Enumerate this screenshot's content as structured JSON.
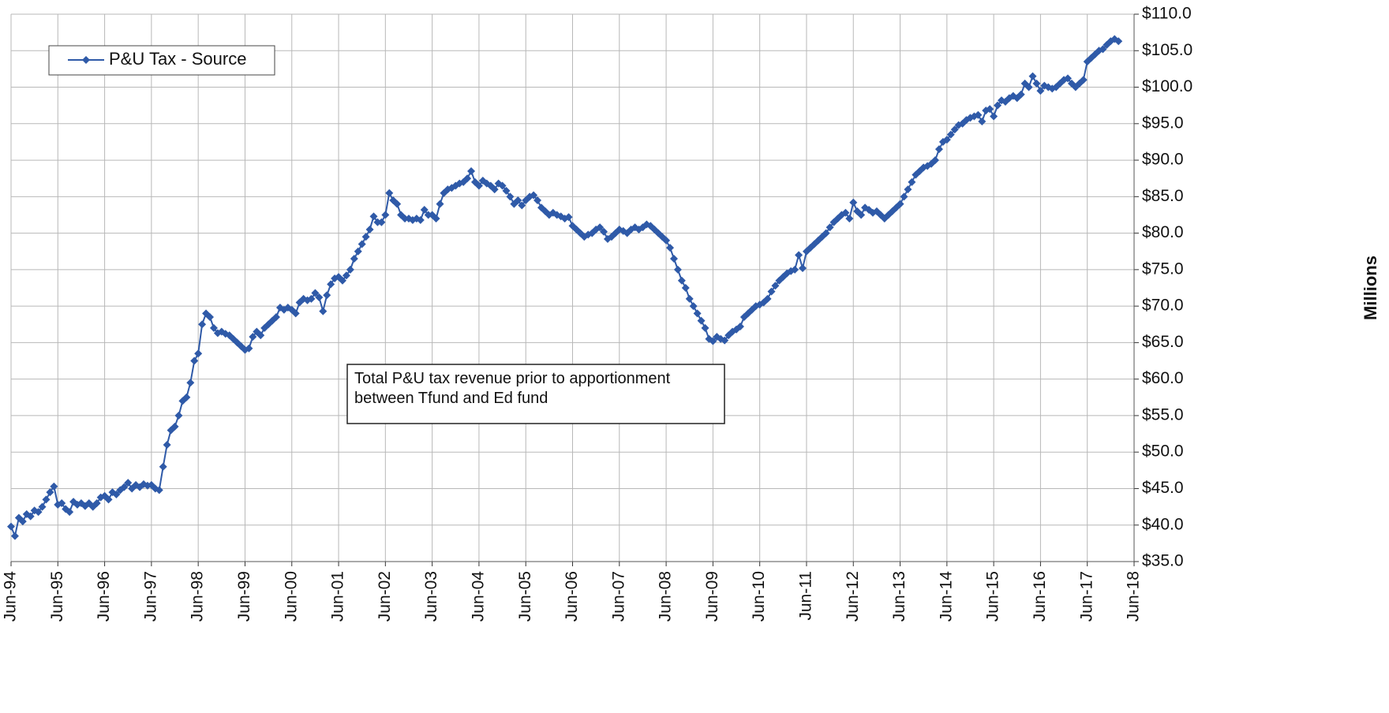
{
  "chart_data": {
    "type": "line",
    "y_label": "Millions",
    "annotation": "Total P&U tax revenue prior to apportionment between Tfund and Ed fund",
    "legend": "upper left",
    "grid": true,
    "categories": [
      "Jun-94",
      null,
      null,
      null,
      null,
      null,
      null,
      null,
      null,
      null,
      null,
      null,
      "Jun-95",
      null,
      null,
      null,
      null,
      null,
      null,
      null,
      null,
      null,
      null,
      null,
      "Jun-96",
      null,
      null,
      null,
      null,
      null,
      null,
      null,
      null,
      null,
      null,
      null,
      "Jun-97",
      null,
      null,
      null,
      null,
      null,
      null,
      null,
      null,
      null,
      null,
      null,
      "Jun-98",
      null,
      null,
      null,
      null,
      null,
      null,
      null,
      null,
      null,
      null,
      null,
      "Jun-99",
      null,
      null,
      null,
      null,
      null,
      null,
      null,
      null,
      null,
      null,
      null,
      "Jun-00",
      null,
      null,
      null,
      null,
      null,
      null,
      null,
      null,
      null,
      null,
      null,
      "Jun-01",
      null,
      null,
      null,
      null,
      null,
      null,
      null,
      null,
      null,
      null,
      null,
      "Jun-02",
      null,
      null,
      null,
      null,
      null,
      null,
      null,
      null,
      null,
      null,
      null,
      "Jun-03",
      null,
      null,
      null,
      null,
      null,
      null,
      null,
      null,
      null,
      null,
      null,
      "Jun-04",
      null,
      null,
      null,
      null,
      null,
      null,
      null,
      null,
      null,
      null,
      null,
      "Jun-05",
      null,
      null,
      null,
      null,
      null,
      null,
      null,
      null,
      null,
      null,
      null,
      "Jun-06",
      null,
      null,
      null,
      null,
      null,
      null,
      null,
      null,
      null,
      null,
      null,
      "Jun-07",
      null,
      null,
      null,
      null,
      null,
      null,
      null,
      null,
      null,
      null,
      null,
      "Jun-08",
      null,
      null,
      null,
      null,
      null,
      null,
      null,
      null,
      null,
      null,
      null,
      "Jun-09",
      null,
      null,
      null,
      null,
      null,
      null,
      null,
      null,
      null,
      null,
      null,
      "Jun-10",
      null,
      null,
      null,
      null,
      null,
      null,
      null,
      null,
      null,
      null,
      null,
      "Jun-11",
      null,
      null,
      null,
      null,
      null,
      null,
      null,
      null,
      null,
      null,
      null,
      "Jun-12",
      null,
      null,
      null,
      null,
      null,
      null,
      null,
      null,
      null,
      null,
      null,
      "Jun-13",
      null,
      null,
      null,
      null,
      null,
      null,
      null,
      null,
      null,
      null,
      null,
      "Jun-14",
      null,
      null,
      null,
      null,
      null,
      null,
      null,
      null,
      null,
      null,
      null,
      "Jun-15",
      null,
      null,
      null,
      null,
      null,
      null,
      null,
      null,
      null,
      null,
      null,
      "Jun-16",
      null,
      null,
      null,
      null,
      null,
      null,
      null,
      null,
      null,
      null,
      null,
      "Jun-17",
      null,
      null,
      null,
      null,
      null,
      null,
      null,
      null,
      null,
      null,
      null,
      "Jun-18"
    ],
    "series": [
      {
        "name": "P&U Tax - Source",
        "color": "#2f5aa8",
        "values": [
          39.8,
          38.5,
          41,
          40.5,
          41.5,
          41.2,
          42,
          41.8,
          42.5,
          43.5,
          44.5,
          45.3,
          42.8,
          43,
          42.2,
          41.8,
          43.2,
          42.8,
          43,
          42.6,
          43,
          42.5,
          43,
          43.8,
          44,
          43.5,
          44.5,
          44.2,
          44.8,
          45.2,
          45.8,
          45,
          45.5,
          45.2,
          45.6,
          45.4,
          45.5,
          45,
          44.8,
          48,
          51,
          53,
          53.5,
          55,
          57,
          57.5,
          59.5,
          62.5,
          63.5,
          67.5,
          69,
          68.5,
          67,
          66.3,
          66.5,
          66.2,
          66,
          65.5,
          65,
          64.5,
          64,
          64.2,
          65.8,
          66.5,
          66,
          67,
          67.5,
          68,
          68.5,
          69.8,
          69.5,
          69.8,
          69.5,
          69,
          70.5,
          71,
          70.8,
          71,
          71.8,
          71.2,
          69.3,
          71.5,
          73,
          73.8,
          74,
          73.5,
          74.2,
          75,
          76.5,
          77.5,
          78.5,
          79.5,
          80.5,
          82.3,
          81.5,
          81.5,
          82.5,
          85.5,
          84.5,
          84,
          82.5,
          82,
          82,
          81.8,
          82,
          81.8,
          83.2,
          82.5,
          82.5,
          82,
          84,
          85.5,
          86,
          86.2,
          86.5,
          86.8,
          87,
          87.5,
          88.5,
          87,
          86.5,
          87.2,
          86.8,
          86.5,
          86,
          86.8,
          86.5,
          85.8,
          85,
          84,
          84.5,
          83.8,
          84.5,
          85,
          85.2,
          84.5,
          83.5,
          83,
          82.5,
          82.8,
          82.5,
          82.3,
          82,
          82.2,
          81,
          80.5,
          80,
          79.5,
          79.8,
          80,
          80.5,
          80.8,
          80.2,
          79.2,
          79.5,
          80,
          80.5,
          80.3,
          80,
          80.5,
          80.8,
          80.5,
          80.8,
          81.2,
          81,
          80.5,
          80,
          79.5,
          79,
          78,
          76.5,
          75,
          73.5,
          72.5,
          71,
          70,
          69,
          68,
          67,
          65.5,
          65.2,
          65.8,
          65.5,
          65.3,
          66,
          66.5,
          66.8,
          67.2,
          68.5,
          69,
          69.5,
          70,
          70.2,
          70.5,
          71,
          72,
          72.8,
          73.5,
          74,
          74.5,
          74.8,
          75,
          77,
          75.2,
          77.5,
          78,
          78.5,
          79,
          79.5,
          80,
          80.8,
          81.5,
          82,
          82.5,
          82.8,
          82,
          84.2,
          83,
          82.5,
          83.5,
          83.2,
          82.8,
          83,
          82.5,
          82,
          82.5,
          83,
          83.5,
          84,
          85,
          86,
          87,
          88,
          88.5,
          89,
          89.2,
          89.5,
          90,
          91.5,
          92.5,
          92.8,
          93.5,
          94.2,
          94.8,
          95,
          95.5,
          95.8,
          96,
          96.2,
          95.3,
          96.8,
          97,
          96,
          97.5,
          98.2,
          98,
          98.5,
          98.8,
          98.5,
          99,
          100.5,
          100,
          101.5,
          100.5,
          99.5,
          100.2,
          100,
          99.8,
          100,
          100.5,
          101,
          101.2,
          100.5,
          100,
          100.5,
          101,
          103.5,
          104,
          104.5,
          105,
          105.2,
          105.8,
          106.3,
          106.6,
          106.3,
          null,
          null,
          null,
          null
        ]
      }
    ],
    "ylim": [
      35,
      110
    ],
    "yticks": [
      {
        "value": 35,
        "label": "$35.0"
      },
      {
        "value": 40,
        "label": "$40.0"
      },
      {
        "value": 45,
        "label": "$45.0"
      },
      {
        "value": 50,
        "label": "$50.0"
      },
      {
        "value": 55,
        "label": "$55.0"
      },
      {
        "value": 60,
        "label": "$60.0"
      },
      {
        "value": 65,
        "label": "$65.0"
      },
      {
        "value": 70,
        "label": "$70.0"
      },
      {
        "value": 75,
        "label": "$75.0"
      },
      {
        "value": 80,
        "label": "$80.0"
      },
      {
        "value": 85,
        "label": "$85.0"
      },
      {
        "value": 90,
        "label": "$90.0"
      },
      {
        "value": 95,
        "label": "$95.0"
      },
      {
        "value": 100,
        "label": "$100.0"
      },
      {
        "value": 105,
        "label": "$105.0"
      },
      {
        "value": 110,
        "label": "$110.0"
      }
    ]
  }
}
